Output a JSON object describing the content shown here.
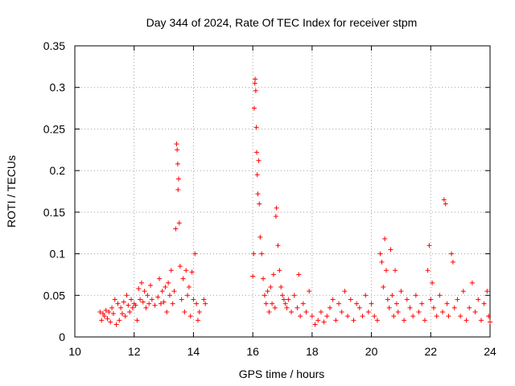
{
  "chart_data": {
    "type": "scatter",
    "title": "Day 344 of 2024, Rate Of TEC Index for receiver stpm",
    "xlabel": "GPS time / hours",
    "ylabel": "ROTI / TECUs",
    "xlim": [
      10,
      24
    ],
    "ylim": [
      0,
      0.35
    ],
    "xticks": [
      10,
      12,
      14,
      16,
      18,
      20,
      22,
      24
    ],
    "yticks": [
      0,
      0.05,
      0.1,
      0.15,
      0.2,
      0.25,
      0.3,
      0.35
    ],
    "grid": true,
    "marker": "+",
    "color": "#ff0000",
    "series": [
      {
        "name": "ROTI",
        "points": [
          [
            10.85,
            0.03
          ],
          [
            10.9,
            0.02
          ],
          [
            10.95,
            0.028
          ],
          [
            11.0,
            0.025
          ],
          [
            11.05,
            0.032
          ],
          [
            11.1,
            0.022
          ],
          [
            11.15,
            0.03
          ],
          [
            11.2,
            0.018
          ],
          [
            11.25,
            0.035
          ],
          [
            11.3,
            0.028
          ],
          [
            11.35,
            0.045
          ],
          [
            11.4,
            0.015
          ],
          [
            11.45,
            0.04
          ],
          [
            11.5,
            0.02
          ],
          [
            11.55,
            0.035
          ],
          [
            11.6,
            0.028
          ],
          [
            11.65,
            0.042
          ],
          [
            11.7,
            0.025
          ],
          [
            11.75,
            0.05
          ],
          [
            11.8,
            0.038
          ],
          [
            11.85,
            0.03
          ],
          [
            11.9,
            0.045
          ],
          [
            11.95,
            0.035
          ],
          [
            12.0,
            0.04
          ],
          [
            12.05,
            0.038
          ],
          [
            12.1,
            0.02
          ],
          [
            12.15,
            0.058
          ],
          [
            12.2,
            0.045
          ],
          [
            12.25,
            0.065
          ],
          [
            12.3,
            0.042
          ],
          [
            12.35,
            0.055
          ],
          [
            12.4,
            0.035
          ],
          [
            12.45,
            0.05
          ],
          [
            12.5,
            0.04
          ],
          [
            12.55,
            0.062
          ],
          [
            12.6,
            0.045
          ],
          [
            12.7,
            0.038
          ],
          [
            12.8,
            0.048
          ],
          [
            12.85,
            0.07
          ],
          [
            12.9,
            0.04
          ],
          [
            12.95,
            0.055
          ],
          [
            13.0,
            0.042
          ],
          [
            13.05,
            0.06
          ],
          [
            13.1,
            0.03
          ],
          [
            13.15,
            0.065
          ],
          [
            13.2,
            0.05
          ],
          [
            13.25,
            0.08
          ],
          [
            13.3,
            0.04
          ],
          [
            13.35,
            0.055
          ],
          [
            13.4,
            0.13
          ],
          [
            13.43,
            0.232
          ],
          [
            13.45,
            0.225
          ],
          [
            13.47,
            0.208
          ],
          [
            13.48,
            0.177
          ],
          [
            13.5,
            0.19
          ],
          [
            13.52,
            0.137
          ],
          [
            13.55,
            0.085
          ],
          [
            13.6,
            0.045
          ],
          [
            13.65,
            0.07
          ],
          [
            13.7,
            0.03
          ],
          [
            13.75,
            0.08
          ],
          [
            13.8,
            0.05
          ],
          [
            13.85,
            0.06
          ],
          [
            13.9,
            0.025
          ],
          [
            13.95,
            0.078
          ],
          [
            14.0,
            0.045
          ],
          [
            14.05,
            0.1
          ],
          [
            14.1,
            0.04
          ],
          [
            14.15,
            0.02
          ],
          [
            14.2,
            0.03
          ],
          [
            14.35,
            0.045
          ],
          [
            14.4,
            0.04
          ],
          [
            16.0,
            0.073
          ],
          [
            16.03,
            0.1
          ],
          [
            16.05,
            0.275
          ],
          [
            16.07,
            0.305
          ],
          [
            16.08,
            0.31
          ],
          [
            16.1,
            0.296
          ],
          [
            16.12,
            0.252
          ],
          [
            16.13,
            0.222
          ],
          [
            16.15,
            0.195
          ],
          [
            16.17,
            0.172
          ],
          [
            16.2,
            0.212
          ],
          [
            16.22,
            0.16
          ],
          [
            16.25,
            0.12
          ],
          [
            16.3,
            0.1
          ],
          [
            16.35,
            0.07
          ],
          [
            16.4,
            0.05
          ],
          [
            16.45,
            0.04
          ],
          [
            16.5,
            0.055
          ],
          [
            16.55,
            0.03
          ],
          [
            16.6,
            0.06
          ],
          [
            16.65,
            0.04
          ],
          [
            16.7,
            0.075
          ],
          [
            16.75,
            0.035
          ],
          [
            16.78,
            0.145
          ],
          [
            16.8,
            0.155
          ],
          [
            16.85,
            0.11
          ],
          [
            16.9,
            0.08
          ],
          [
            16.95,
            0.06
          ],
          [
            17.0,
            0.05
          ],
          [
            17.05,
            0.045
          ],
          [
            17.1,
            0.04
          ],
          [
            17.15,
            0.035
          ],
          [
            17.2,
            0.045
          ],
          [
            17.3,
            0.03
          ],
          [
            17.4,
            0.05
          ],
          [
            17.5,
            0.035
          ],
          [
            17.55,
            0.075
          ],
          [
            17.6,
            0.025
          ],
          [
            17.7,
            0.04
          ],
          [
            17.8,
            0.03
          ],
          [
            17.9,
            0.055
          ],
          [
            18.0,
            0.025
          ],
          [
            18.1,
            0.015
          ],
          [
            18.2,
            0.02
          ],
          [
            18.3,
            0.03
          ],
          [
            18.4,
            0.018
          ],
          [
            18.5,
            0.025
          ],
          [
            18.6,
            0.035
          ],
          [
            18.7,
            0.045
          ],
          [
            18.8,
            0.02
          ],
          [
            18.9,
            0.04
          ],
          [
            19.0,
            0.03
          ],
          [
            19.1,
            0.055
          ],
          [
            19.2,
            0.025
          ],
          [
            19.3,
            0.045
          ],
          [
            19.4,
            0.02
          ],
          [
            19.5,
            0.04
          ],
          [
            19.6,
            0.035
          ],
          [
            19.7,
            0.025
          ],
          [
            19.8,
            0.05
          ],
          [
            19.9,
            0.03
          ],
          [
            20.0,
            0.04
          ],
          [
            20.1,
            0.025
          ],
          [
            20.2,
            0.02
          ],
          [
            20.3,
            0.1
          ],
          [
            20.35,
            0.09
          ],
          [
            20.4,
            0.06
          ],
          [
            20.45,
            0.118
          ],
          [
            20.5,
            0.08
          ],
          [
            20.55,
            0.045
          ],
          [
            20.6,
            0.035
          ],
          [
            20.65,
            0.105
          ],
          [
            20.7,
            0.05
          ],
          [
            20.75,
            0.025
          ],
          [
            20.8,
            0.08
          ],
          [
            20.85,
            0.04
          ],
          [
            20.9,
            0.03
          ],
          [
            21.0,
            0.055
          ],
          [
            21.1,
            0.02
          ],
          [
            21.2,
            0.045
          ],
          [
            21.3,
            0.035
          ],
          [
            21.4,
            0.025
          ],
          [
            21.5,
            0.05
          ],
          [
            21.6,
            0.03
          ],
          [
            21.7,
            0.04
          ],
          [
            21.8,
            0.02
          ],
          [
            21.9,
            0.08
          ],
          [
            21.95,
            0.11
          ],
          [
            22.0,
            0.045
          ],
          [
            22.05,
            0.065
          ],
          [
            22.1,
            0.035
          ],
          [
            22.2,
            0.025
          ],
          [
            22.3,
            0.05
          ],
          [
            22.4,
            0.03
          ],
          [
            22.45,
            0.165
          ],
          [
            22.5,
            0.16
          ],
          [
            22.55,
            0.04
          ],
          [
            22.6,
            0.025
          ],
          [
            22.7,
            0.1
          ],
          [
            22.75,
            0.09
          ],
          [
            22.8,
            0.035
          ],
          [
            22.9,
            0.045
          ],
          [
            23.0,
            0.025
          ],
          [
            23.1,
            0.055
          ],
          [
            23.2,
            0.02
          ],
          [
            23.3,
            0.035
          ],
          [
            23.4,
            0.065
          ],
          [
            23.5,
            0.03
          ],
          [
            23.6,
            0.045
          ],
          [
            23.7,
            0.02
          ],
          [
            23.8,
            0.04
          ],
          [
            23.9,
            0.055
          ],
          [
            23.95,
            0.025
          ],
          [
            24.0,
            0.018
          ]
        ]
      }
    ]
  }
}
